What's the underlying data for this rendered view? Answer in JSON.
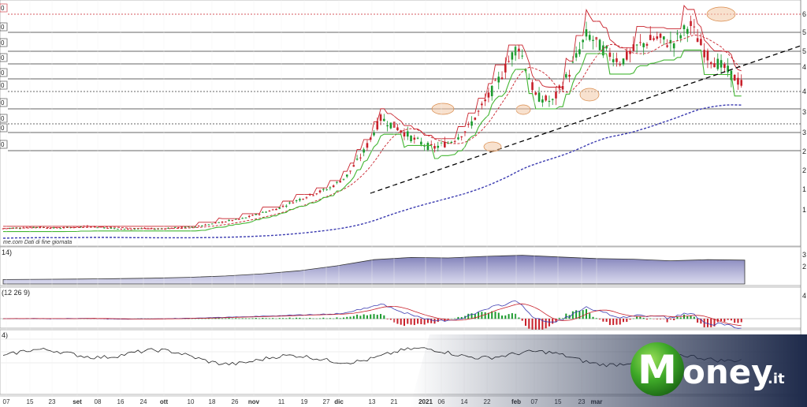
{
  "chart_data": [
    {
      "type": "candlestick",
      "panel": "price",
      "source_note": "me.com  Dati di fine giornata",
      "right_axis_ticks": [
        "6",
        "5",
        "5",
        "4",
        "4",
        "3",
        "3",
        "2",
        "2",
        "1",
        "1"
      ],
      "left_axis_boxes": [
        "0",
        "0",
        "0",
        "0",
        "0",
        "0",
        "0",
        "0",
        "0",
        "0",
        "0"
      ],
      "x_labels": [
        "07",
        "15",
        "23",
        "set",
        "08",
        "16",
        "24",
        "ott",
        "10",
        "18",
        "26",
        "nov",
        "11",
        "19",
        "27",
        "dic",
        "13",
        "21",
        "2021",
        "06",
        "14",
        "22",
        "feb",
        "07",
        "15",
        "23",
        "mar"
      ],
      "x_bold": [
        "set",
        "ott",
        "nov",
        "dic",
        "2021",
        "feb",
        "mar"
      ],
      "price_path": [
        1.1,
        1.12,
        1.14,
        1.11,
        1.13,
        1.16,
        1.12,
        1.08,
        1.1,
        1.09,
        1.12,
        1.14,
        1.2,
        1.28,
        1.35,
        1.48,
        1.6,
        1.78,
        1.95,
        2.1,
        2.4,
        3.0,
        3.85,
        3.6,
        3.3,
        3.1,
        3.25,
        3.55,
        4.2,
        4.9,
        5.7,
        4.4,
        4.25,
        5.0,
        5.95,
        5.55,
        5.25,
        5.65,
        5.85,
        5.7,
        6.2,
        5.4,
        5.1,
        4.7
      ],
      "series": [
        {
          "name": "price",
          "color": "#1a9a2c"
        },
        {
          "name": "down-candles",
          "color": "#c8202a"
        },
        {
          "name": "moving-average-short",
          "color": "#c8202a"
        },
        {
          "name": "moving-average-long",
          "color": "#3a3ab0"
        },
        {
          "name": "support-stop",
          "color": "#43b633"
        },
        {
          "name": "resistance-stop",
          "color": "#c8202a"
        },
        {
          "name": "trendline",
          "color": "#000000"
        }
      ]
    },
    {
      "type": "area",
      "panel": "indicator-1",
      "label": "14)",
      "right_axis_ticks": [
        "3",
        "2"
      ],
      "values": [
        0.2,
        0.21,
        0.22,
        0.24,
        0.26,
        0.3,
        0.36,
        0.46,
        0.6,
        0.82,
        1.1,
        1.2,
        1.18,
        1.25,
        1.3,
        1.22,
        1.15,
        1.12,
        1.05,
        1.1,
        1.08
      ]
    },
    {
      "type": "histogram",
      "panel": "macd",
      "label": "(12 26 9)",
      "right_axis_ticks": [
        "4"
      ],
      "macd_line_color": "#3a3ab0",
      "signal_line_color": "#c8202a"
    },
    {
      "type": "line",
      "panel": "oscillator",
      "label": "4)"
    }
  ],
  "brand": {
    "logo_text": "oney",
    "logo_suffix": ".it",
    "brand_colors": {
      "navy": "#1e2a4a",
      "green": "#43b633"
    }
  }
}
